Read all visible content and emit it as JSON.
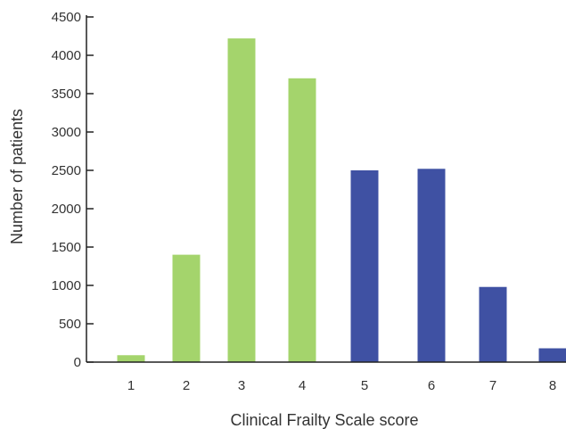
{
  "chart_data": {
    "type": "bar",
    "categories": [
      "1",
      "2",
      "3",
      "4",
      "5",
      "6",
      "7",
      "8"
    ],
    "values": [
      90,
      1400,
      4220,
      3700,
      2500,
      2520,
      980,
      180
    ],
    "bar_colors": [
      "#a4d46c",
      "#a4d46c",
      "#a4d46c",
      "#a4d46c",
      "#3f51a3",
      "#3f51a3",
      "#3f51a3",
      "#3f51a3"
    ],
    "xlabel": "Clinical Frailty Scale score",
    "ylabel": "Number of patients",
    "ylim": [
      0,
      4500
    ],
    "yticks": [
      "0",
      "500",
      "1000",
      "1500",
      "2000",
      "2500",
      "3000",
      "3500",
      "4000",
      "4500"
    ],
    "grid": false,
    "legend": "none"
  }
}
